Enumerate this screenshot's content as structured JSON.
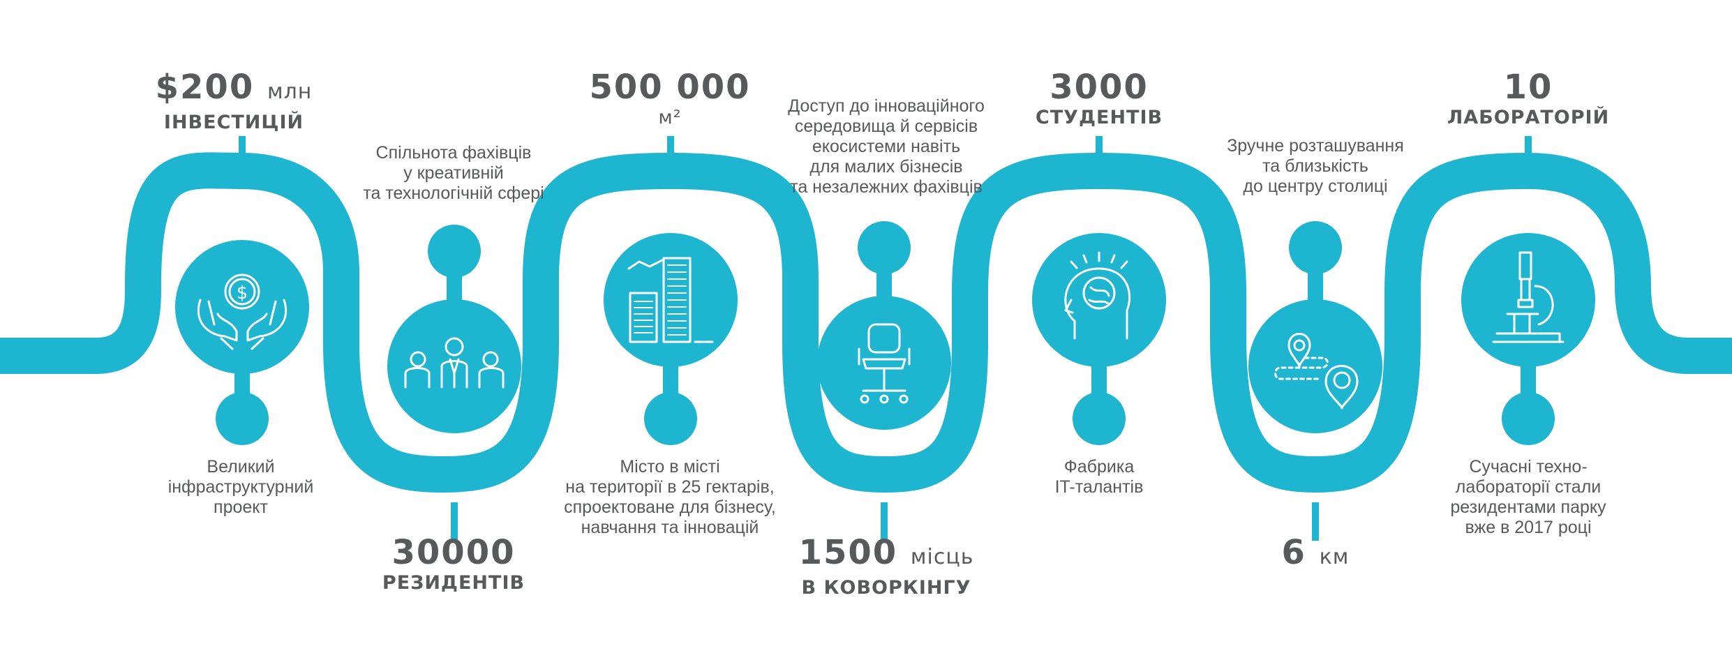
{
  "accent_color": "#1eb5d0",
  "text_color": "#58595b",
  "stats": [
    {
      "value": "$200",
      "unit": "млн",
      "caption": "ІНВЕСТИЦІЙ",
      "icon": "money-hands-icon",
      "description": [
        "Великий",
        "інфраструктурний",
        "проект"
      ]
    },
    {
      "value": "30000",
      "unit": "",
      "caption": "РЕЗИДЕНТІВ",
      "icon": "people-group-icon",
      "description": [
        "Спільнота фахівців",
        "у креативній",
        "та технологічній сфері"
      ]
    },
    {
      "value": "500 000",
      "unit": "",
      "caption": "м²",
      "icon": "city-buildings-icon",
      "description": [
        "Місто в місті",
        "на території в 25 гектарів,",
        "спроектоване для бізнесу,",
        "навчання та інновацій"
      ]
    },
    {
      "value": "1500",
      "unit": "місць",
      "caption": "В КОВОРКІНГУ",
      "icon": "office-chair-icon",
      "description": [
        "Доступ до інноваційного",
        "середовища й сервісів",
        "екосистеми навіть",
        "для малих бізнесів",
        "та незалежних фахівців"
      ]
    },
    {
      "value": "3000",
      "unit": "",
      "caption": "СТУДЕНТІВ",
      "icon": "brain-head-icon",
      "description": [
        "Фабрика",
        "IT-талантів"
      ]
    },
    {
      "value": "6",
      "unit": "км",
      "caption": "",
      "icon": "map-route-icon",
      "description": [
        "Зручне розташування",
        "та близькість",
        "до центру столиці"
      ]
    },
    {
      "value": "10",
      "unit": "",
      "caption": "ЛАБОРАТОРІЙ",
      "icon": "microscope-icon",
      "description": [
        "Сучасні техно-",
        "лабораторії стали",
        "резидентами парку",
        "вже в 2017 році"
      ]
    }
  ]
}
